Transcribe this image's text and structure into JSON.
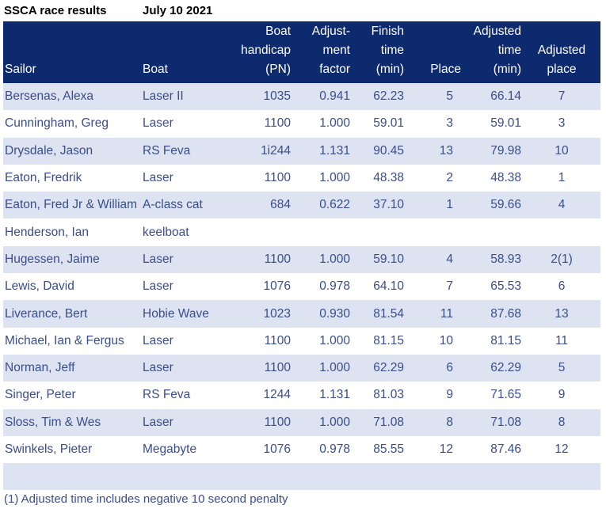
{
  "heading": {
    "title": "SSCA race results",
    "date": "July 10 2021"
  },
  "columns": {
    "sailor": "Sailor",
    "boat": "Boat",
    "handicap": [
      "Boat",
      "handicap",
      "(PN)"
    ],
    "adjustment": [
      "Adjust-",
      "ment",
      "factor"
    ],
    "finish": [
      "Finish",
      "time",
      "(min)"
    ],
    "place": "Place",
    "adjusted_time": [
      "Adjusted",
      "time",
      "(min)"
    ],
    "adjusted_place": [
      "Adjusted",
      "place"
    ]
  },
  "rows": [
    {
      "sailor": "Bersenas, Alexa",
      "boat": "Laser II",
      "handicap": "1035",
      "factor": "0.941",
      "finish": "62.23",
      "place": "5",
      "adj_time": "66.14",
      "adj_place": "7"
    },
    {
      "sailor": "Cunningham, Greg",
      "boat": "Laser",
      "handicap": "1100",
      "factor": "1.000",
      "finish": "59.01",
      "place": "3",
      "adj_time": "59.01",
      "adj_place": "3"
    },
    {
      "sailor": "Drysdale, Jason",
      "boat": "RS Feva",
      "handicap": "1i244",
      "factor": "1.131",
      "finish": "90.45",
      "place": "13",
      "adj_time": "79.98",
      "adj_place": "10"
    },
    {
      "sailor": "Eaton, Fredrik",
      "boat": "Laser",
      "handicap": "1100",
      "factor": "1.000",
      "finish": "48.38",
      "place": "2",
      "adj_time": "48.38",
      "adj_place": "1"
    },
    {
      "sailor": "Eaton, Fred Jr & William",
      "boat": "A-class cat",
      "handicap": "684",
      "factor": "0.622",
      "finish": "37.10",
      "place": "1",
      "adj_time": "59.66",
      "adj_place": "4"
    },
    {
      "sailor": "Henderson, Ian",
      "boat": "keelboat",
      "handicap": "",
      "factor": "",
      "finish": "",
      "place": "",
      "adj_time": "",
      "adj_place": ""
    },
    {
      "sailor": "Hugessen, Jaime",
      "boat": "Laser",
      "handicap": "1100",
      "factor": "1.000",
      "finish": "59.10",
      "place": "4",
      "adj_time": "58.93",
      "adj_place": "2(1)"
    },
    {
      "sailor": "Lewis, David",
      "boat": "Laser",
      "handicap": "1076",
      "factor": "0.978",
      "finish": "64.10",
      "place": "7",
      "adj_time": "65.53",
      "adj_place": "6"
    },
    {
      "sailor": "Liverance, Bert",
      "boat": "Hobie Wave",
      "handicap": "1023",
      "factor": "0.930",
      "finish": "81.54",
      "place": "11",
      "adj_time": "87.68",
      "adj_place": "13"
    },
    {
      "sailor": "Michael,  Ian & Fergus",
      "boat": "Laser",
      "handicap": "1100",
      "factor": "1.000",
      "finish": "81.15",
      "place": "10",
      "adj_time": "81.15",
      "adj_place": "11"
    },
    {
      "sailor": "Norman, Jeff",
      "boat": "Laser",
      "handicap": "1100",
      "factor": "1.000",
      "finish": "62.29",
      "place": "6",
      "adj_time": "62.29",
      "adj_place": "5"
    },
    {
      "sailor": "Singer, Peter",
      "boat": "RS Feva",
      "handicap": "1244",
      "factor": "1.131",
      "finish": "81.03",
      "place": "9",
      "adj_time": "71.65",
      "adj_place": "9"
    },
    {
      "sailor": "Sloss, Tim & Wes",
      "boat": "Laser",
      "handicap": "1100",
      "factor": "1.000",
      "finish": "71.08",
      "place": "8",
      "adj_time": "71.08",
      "adj_place": "8"
    },
    {
      "sailor": "Swinkels, Pieter",
      "boat": "Megabyte",
      "handicap": "1076",
      "factor": "0.978",
      "finish": "85.55",
      "place": "12",
      "adj_time": "87.46",
      "adj_place": "12"
    },
    {
      "sailor": "",
      "boat": "",
      "handicap": "",
      "factor": "",
      "finish": "",
      "place": "",
      "adj_time": "",
      "adj_place": ""
    }
  ],
  "footnote": "(1) Adjusted time includes negative 10 second penalty",
  "colors": {
    "header_bg": "#0e2a6e",
    "header_text": "#ffffff",
    "row_alt_bg": "#dde3f1",
    "cell_text": "#3a4d8c"
  }
}
